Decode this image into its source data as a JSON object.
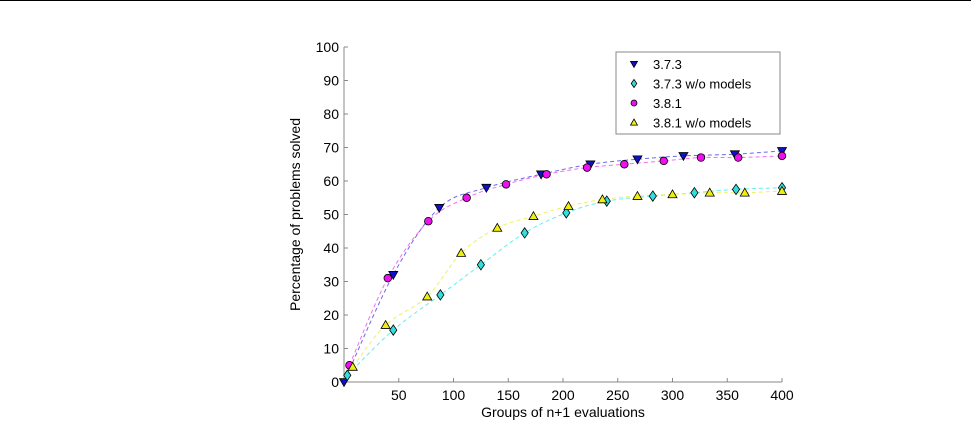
{
  "chart_data": {
    "type": "scatter",
    "title": "",
    "xlabel": "Groups of n+1 evaluations",
    "ylabel": "Percentage of problems solved",
    "xlim": [
      0,
      400
    ],
    "ylim": [
      0,
      100
    ],
    "xticks": [
      50,
      100,
      150,
      200,
      250,
      300,
      350,
      400
    ],
    "yticks": [
      0,
      10,
      20,
      30,
      40,
      50,
      60,
      70,
      80,
      90,
      100
    ],
    "grid": false,
    "legend_position": "top-right",
    "series": [
      {
        "name": "3.7.3",
        "marker": "triangle-down",
        "color": "#1010c8",
        "line_color": "#6a6af0",
        "x": [
          0,
          45,
          87,
          130,
          180,
          225,
          268,
          310,
          357,
          400
        ],
        "y": [
          0,
          32,
          52,
          58,
          62,
          65,
          66.5,
          67.5,
          68,
          69
        ]
      },
      {
        "name": "3.7.3 w/o models",
        "marker": "diamond",
        "color": "#33dddd",
        "line_color": "#66eeee",
        "x": [
          3,
          45,
          88,
          125,
          165,
          203,
          240,
          282,
          320,
          358,
          400
        ],
        "y": [
          2,
          15.5,
          26,
          35,
          44.5,
          50.5,
          54,
          55.5,
          56.5,
          57.5,
          58
        ]
      },
      {
        "name": "3.8.1",
        "marker": "circle",
        "color": "#ee11ee",
        "line_color": "#f070f0",
        "x": [
          5,
          40,
          77,
          112,
          148,
          185,
          222,
          256,
          292,
          326,
          360,
          400
        ],
        "y": [
          5,
          31,
          48,
          55,
          59,
          62,
          64,
          65,
          66,
          67,
          67,
          67.5
        ]
      },
      {
        "name": "3.8.1 w/o models",
        "marker": "triangle-up",
        "color": "#eeee11",
        "line_color": "#f0f060",
        "x": [
          8,
          38,
          76,
          107,
          140,
          173,
          205,
          236,
          268,
          300,
          334,
          366,
          400
        ],
        "y": [
          4.5,
          17,
          25.5,
          38.5,
          46,
          49.5,
          52.5,
          54.5,
          55.5,
          56,
          56.5,
          56.5,
          57
        ]
      }
    ]
  }
}
